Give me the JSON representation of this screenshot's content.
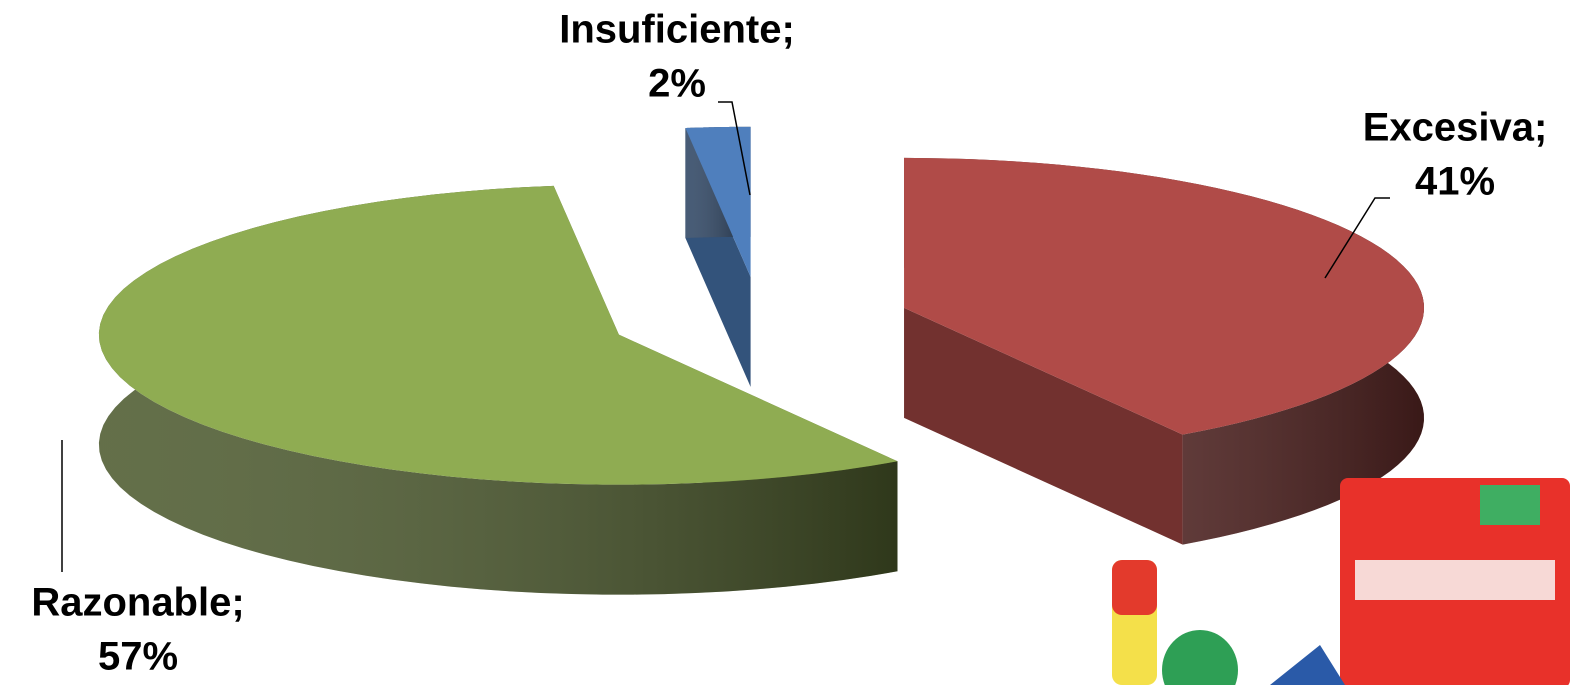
{
  "chart_data": {
    "type": "pie3d",
    "categories": [
      "Excesiva;",
      "Razonable;",
      "Insuficiente;"
    ],
    "values": [
      41,
      57,
      2
    ],
    "value_labels": [
      "41%",
      "57%",
      "2%"
    ],
    "colors": [
      "#b04b48",
      "#8fac52",
      "#4f7fbd"
    ],
    "exploded": true
  }
}
